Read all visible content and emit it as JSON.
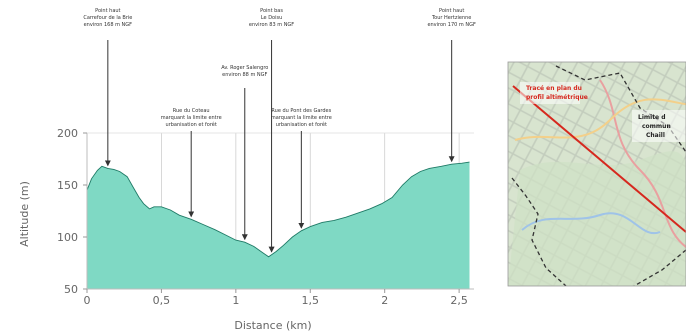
{
  "chart_data": {
    "type": "area",
    "title": "",
    "xlabel": "Distance (km)",
    "ylabel": "Altitude (m)",
    "xlim": [
      0,
      2.6
    ],
    "ylim": [
      50,
      200
    ],
    "x_ticks": [
      0,
      0.5,
      1,
      1.5,
      2,
      2.5
    ],
    "x_tick_labels": [
      "0",
      "0,5",
      "1",
      "1,5",
      "2",
      "2,5"
    ],
    "y_ticks": [
      50,
      100,
      150,
      200
    ],
    "y_tick_labels": [
      "50",
      "100",
      "150",
      "200"
    ],
    "grid": "vertical",
    "colors": {
      "fill": "#7fd9c4",
      "line": "#1f7a66",
      "arrow": "#333333"
    },
    "series": [
      {
        "x": [
          0,
          0.03,
          0.07,
          0.1,
          0.14,
          0.18,
          0.22,
          0.27,
          0.31,
          0.35,
          0.38,
          0.42,
          0.45,
          0.5,
          0.56,
          0.62,
          0.7,
          0.78,
          0.86,
          0.93,
          1.0,
          1.06,
          1.12,
          1.18,
          1.22,
          1.27,
          1.32,
          1.38,
          1.44,
          1.5,
          1.58,
          1.66,
          1.74,
          1.82,
          1.9,
          1.98,
          2.05,
          2.12,
          2.18,
          2.24,
          2.3,
          2.38,
          2.45,
          2.52,
          2.57
        ],
        "y": [
          145,
          156,
          164,
          168,
          166,
          165,
          163,
          158,
          148,
          138,
          132,
          127,
          129,
          129,
          126,
          121,
          117,
          112,
          107,
          102,
          97,
          95,
          91,
          85,
          81,
          86,
          92,
          100,
          106,
          110,
          114,
          116,
          119,
          123,
          127,
          132,
          138,
          150,
          158,
          163,
          166,
          168,
          170,
          171,
          172
        ]
      }
    ],
    "annotations": [
      {
        "x": 0.14,
        "lines": [
          "Point haut",
          "Carrefour de la Brie",
          "environ 168 m NGF"
        ]
      },
      {
        "x": 0.7,
        "lines": [
          "Rue du Coteau",
          "marquant la limite entre",
          "urbanisation et forêt"
        ]
      },
      {
        "x": 1.06,
        "lines": [
          "Av. Roger Salengro",
          "environ 88 m NGF"
        ]
      },
      {
        "x": 1.24,
        "lines": [
          "Point bas",
          "Le Doisu",
          "environ 83 m NGF"
        ]
      },
      {
        "x": 1.44,
        "lines": [
          "Rue du Pont des Gardes",
          "marquant la limite entre",
          "urbanisation et forêt"
        ]
      },
      {
        "x": 2.45,
        "lines": [
          "Point haut",
          "Tour Hertzienne",
          "environ 170 m NGF"
        ]
      }
    ]
  },
  "map_inset": {
    "label_profile": [
      "Tracé en plan du",
      "profil altimétrique"
    ],
    "label_limit": [
      "Limite d",
      "commun",
      "Chaill"
    ]
  }
}
